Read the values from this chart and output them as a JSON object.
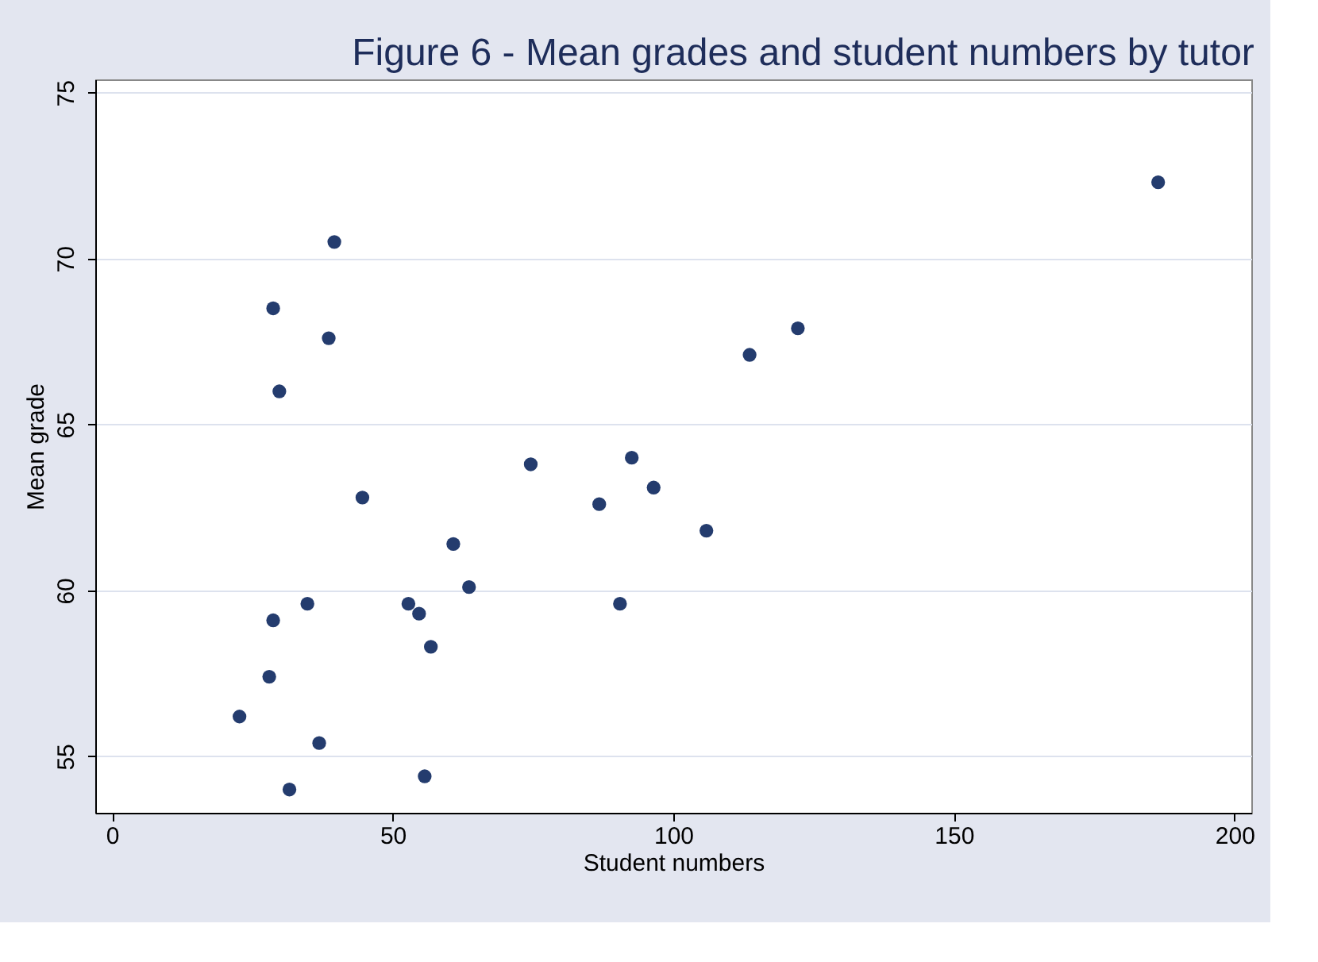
{
  "chart_data": {
    "type": "scatter",
    "title": "Figure 6 - Mean grades and student numbers by tutor",
    "xlabel": "Student numbers",
    "ylabel": "Mean grade",
    "x": [
      39.6,
      28.7,
      38.6,
      29.8,
      44.6,
      60.8,
      63.6,
      34.8,
      28.7,
      52.8,
      54.7,
      56.8,
      28.0,
      22.7,
      36.9,
      55.7,
      31.6,
      74.6,
      92.6,
      96.5,
      86.8,
      105.9,
      90.5,
      113.6,
      122.2,
      186.4
    ],
    "values": [
      70.5,
      68.5,
      67.6,
      66.0,
      62.8,
      61.4,
      60.1,
      59.6,
      59.1,
      59.6,
      59.3,
      58.3,
      57.4,
      56.2,
      55.4,
      54.4,
      54.0,
      63.8,
      64.0,
      63.1,
      62.6,
      61.8,
      59.6,
      67.1,
      67.9,
      72.3
    ],
    "color": "#243c6e",
    "marker": "circle",
    "grid": "y",
    "xlim": [
      -3,
      203
    ],
    "ylim": [
      53.3,
      75.4
    ],
    "xticks": [
      0,
      50,
      100,
      150,
      200
    ],
    "yticks": [
      55,
      60,
      65,
      70,
      75
    ]
  }
}
